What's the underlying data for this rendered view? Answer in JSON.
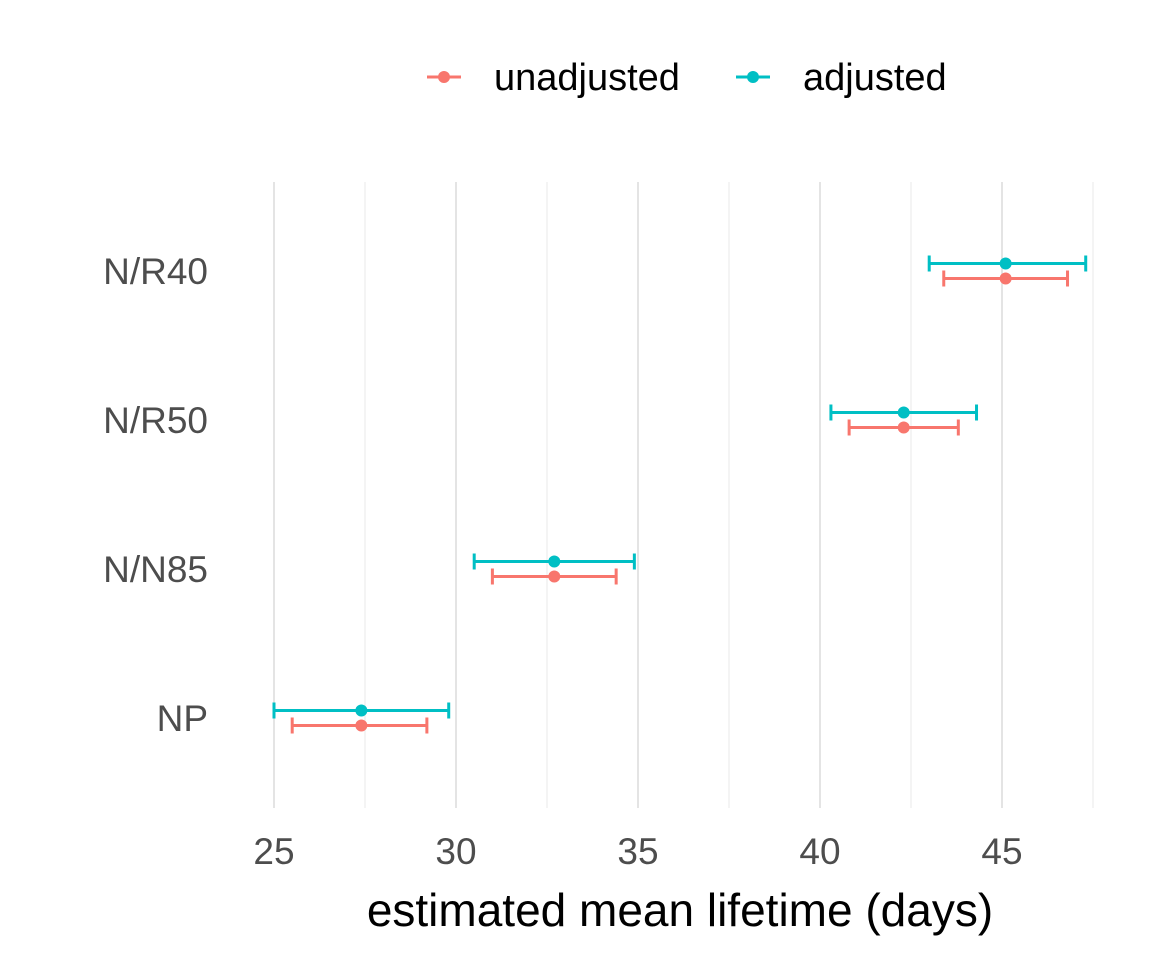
{
  "chart_data": {
    "type": "errorbar",
    "title": "",
    "xlabel": "estimated mean lifetime (days)",
    "ylabel": "",
    "xlim": [
      25,
      47.5
    ],
    "x_ticks": [
      "25",
      "30",
      "35",
      "40",
      "45"
    ],
    "x_tick_values": [
      25,
      30,
      35,
      40,
      45
    ],
    "categories": [
      "N/R40",
      "N/R50",
      "N/N85",
      "NP"
    ],
    "legend_position": "top",
    "grid": "vertical",
    "series": [
      {
        "name": "unadjusted",
        "color": "#F8766D",
        "points": [
          {
            "category": "N/R40",
            "estimate": 45.1,
            "lower": 43.4,
            "upper": 46.8
          },
          {
            "category": "N/R50",
            "estimate": 42.3,
            "lower": 40.8,
            "upper": 43.8
          },
          {
            "category": "N/N85",
            "estimate": 32.7,
            "lower": 31.0,
            "upper": 34.4
          },
          {
            "category": "NP",
            "estimate": 27.4,
            "lower": 25.5,
            "upper": 29.2
          }
        ]
      },
      {
        "name": "adjusted",
        "color": "#00BFC4",
        "points": [
          {
            "category": "N/R40",
            "estimate": 45.1,
            "lower": 43.0,
            "upper": 47.3
          },
          {
            "category": "N/R50",
            "estimate": 42.3,
            "lower": 40.3,
            "upper": 44.3
          },
          {
            "category": "N/N85",
            "estimate": 32.7,
            "lower": 30.5,
            "upper": 34.9
          },
          {
            "category": "NP",
            "estimate": 27.4,
            "lower": 25.0,
            "upper": 29.8
          }
        ]
      }
    ]
  }
}
